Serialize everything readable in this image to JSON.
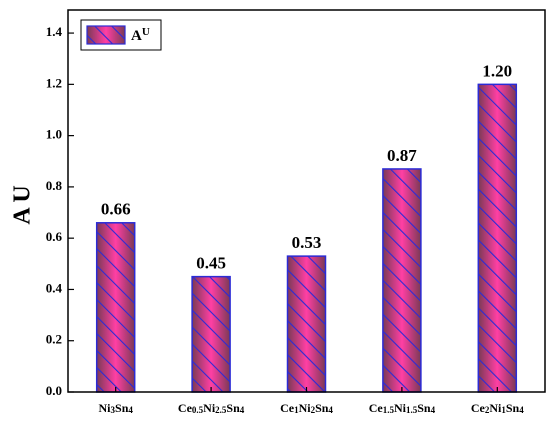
{
  "chart_data": {
    "type": "bar",
    "categories": [
      "Ni3Sn4",
      "Ce0.5Ni2.5Sn4",
      "Ce1Ni2Sn4",
      "Ce1.5Ni1.5Sn4",
      "Ce2Ni1Sn4"
    ],
    "series": [
      {
        "name": "AU",
        "color": "#ff3fa4",
        "hatch_color": "#2b2bd6",
        "values": [
          0.66,
          0.45,
          0.53,
          0.87,
          1.2
        ],
        "value_labels": [
          "0.66",
          "0.45",
          "0.53",
          "0.87",
          "1.20"
        ]
      }
    ],
    "ylabel": "A U",
    "ylim": [
      0,
      1.49
    ],
    "yticks": [
      {
        "value": 0,
        "label": "0.0"
      },
      0.2,
      0.4,
      0.6,
      0.8,
      {
        "value": 1,
        "label": "1.0"
      },
      1.2,
      1.4
    ],
    "legend": "upper left",
    "grid": false
  }
}
